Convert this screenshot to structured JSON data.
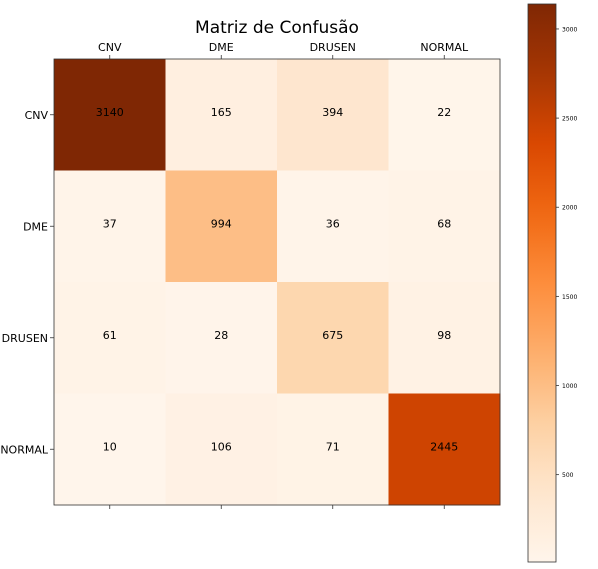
{
  "chart_data": {
    "type": "heatmap",
    "title": "Matriz de Confusão",
    "x_categories": [
      "CNV",
      "DME",
      "DRUSEN",
      "NORMAL"
    ],
    "y_categories": [
      "CNV",
      "DME",
      "DRUSEN",
      "NORMAL"
    ],
    "values": [
      [
        3140,
        165,
        394,
        22
      ],
      [
        37,
        994,
        36,
        68
      ],
      [
        61,
        28,
        675,
        98
      ],
      [
        10,
        106,
        71,
        2445
      ]
    ],
    "xlabel": "",
    "ylabel": "",
    "x_axis_position": "top",
    "colormap": "Oranges",
    "colormap_low": "#fff5eb",
    "colormap_high": "#7f2704",
    "color_range": [
      10,
      3140
    ],
    "colorbar": {
      "ticks": [
        500,
        1000,
        1500,
        2000,
        2500,
        3000
      ],
      "tick_labels": [
        "500",
        "1000",
        "1500",
        "2000",
        "2500",
        "3000"
      ],
      "placement": "right"
    },
    "text_color": "#000000",
    "grid": false
  }
}
